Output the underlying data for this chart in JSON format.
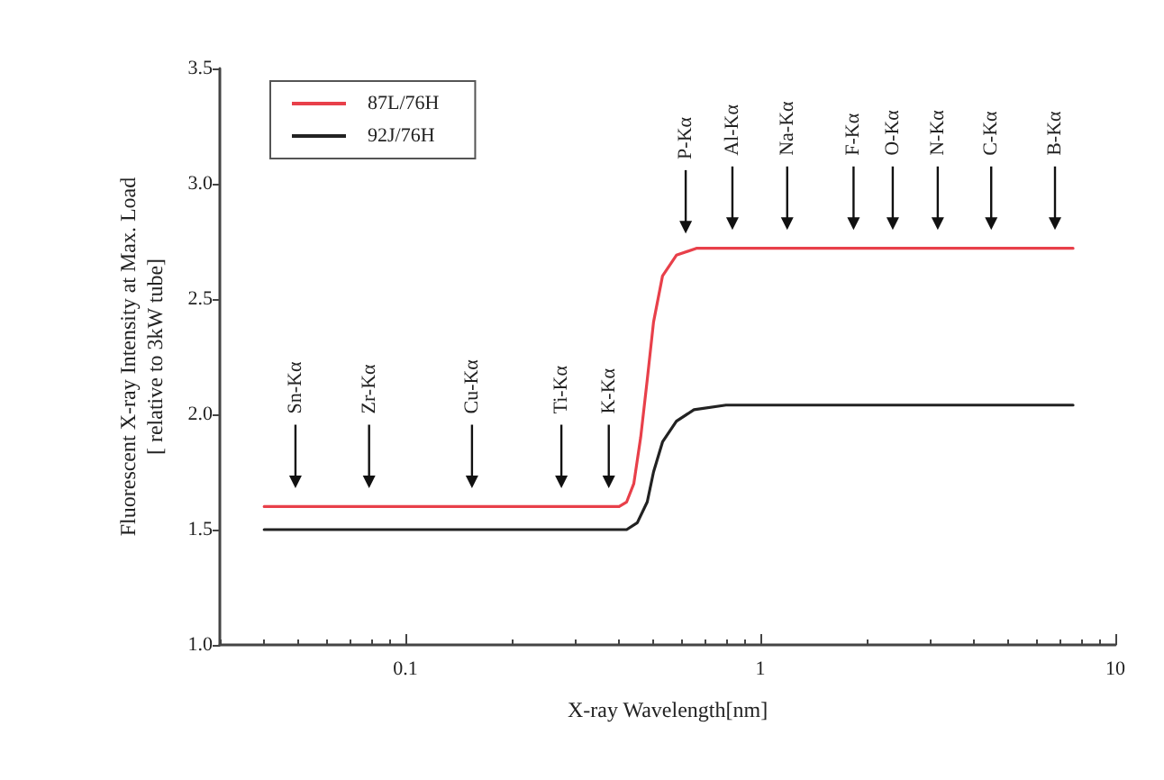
{
  "chart_data": {
    "type": "line",
    "xlabel": "X-ray Wavelength[nm]",
    "ylabel": "Fluorescent X-ray Intensity at Max. Load\n[ relative to 3kW tube]",
    "log": "x",
    "xlim": [
      0.03,
      10
    ],
    "xticks": [
      0.1,
      1,
      10
    ],
    "ylim": [
      1,
      3.5
    ],
    "yticks": [
      {
        "value": 1,
        "label": "1.0"
      },
      {
        "value": 1.5,
        "label": "1.5"
      },
      {
        "value": 2,
        "label": "2.0"
      },
      {
        "value": 2.5,
        "label": "2.5"
      },
      {
        "value": 3,
        "label": "3.0"
      },
      {
        "value": 3.5,
        "label": "3.5"
      }
    ],
    "grid": false,
    "legend": "top left",
    "marker": "none",
    "line_style": "solid",
    "series": [
      {
        "name": "87L/76H",
        "color": "#e8404a",
        "x": [
          0.04,
          0.4,
          0.42,
          0.44,
          0.46,
          0.48,
          0.5,
          0.53,
          0.58,
          0.66,
          7.6
        ],
        "values": [
          1.6,
          1.6,
          1.62,
          1.7,
          1.9,
          2.15,
          2.4,
          2.6,
          2.69,
          2.72,
          2.72
        ]
      },
      {
        "name": "92J/76H",
        "color": "#222222",
        "x": [
          0.04,
          0.42,
          0.45,
          0.48,
          0.5,
          0.53,
          0.58,
          0.65,
          0.8,
          7.6
        ],
        "values": [
          1.5,
          1.5,
          1.53,
          1.62,
          1.75,
          1.88,
          1.97,
          2.02,
          2.04,
          2.04
        ]
      }
    ],
    "ref_lines": [
      {
        "axis": "x",
        "value": 0.049,
        "label": "Sn-Kα"
      },
      {
        "axis": "x",
        "value": 0.079,
        "label": "Zr-Kα"
      },
      {
        "axis": "x",
        "value": 0.154,
        "label": "Cu-Kα"
      },
      {
        "axis": "x",
        "value": 0.275,
        "label": "Ti-Kα"
      },
      {
        "axis": "x",
        "value": 0.374,
        "label": "K-Kα"
      },
      {
        "axis": "x",
        "value": 0.616,
        "label": "P-Kα"
      },
      {
        "axis": "x",
        "value": 0.834,
        "label": "Al-Kα"
      },
      {
        "axis": "x",
        "value": 1.19,
        "label": "Na-Kα"
      },
      {
        "axis": "x",
        "value": 1.83,
        "label": "F-Kα"
      },
      {
        "axis": "x",
        "value": 2.36,
        "label": "O-Kα"
      },
      {
        "axis": "x",
        "value": 3.16,
        "label": "N-Kα"
      },
      {
        "axis": "x",
        "value": 4.47,
        "label": "C-Kα"
      },
      {
        "axis": "x",
        "value": 6.76,
        "label": "B-Kα"
      }
    ]
  }
}
